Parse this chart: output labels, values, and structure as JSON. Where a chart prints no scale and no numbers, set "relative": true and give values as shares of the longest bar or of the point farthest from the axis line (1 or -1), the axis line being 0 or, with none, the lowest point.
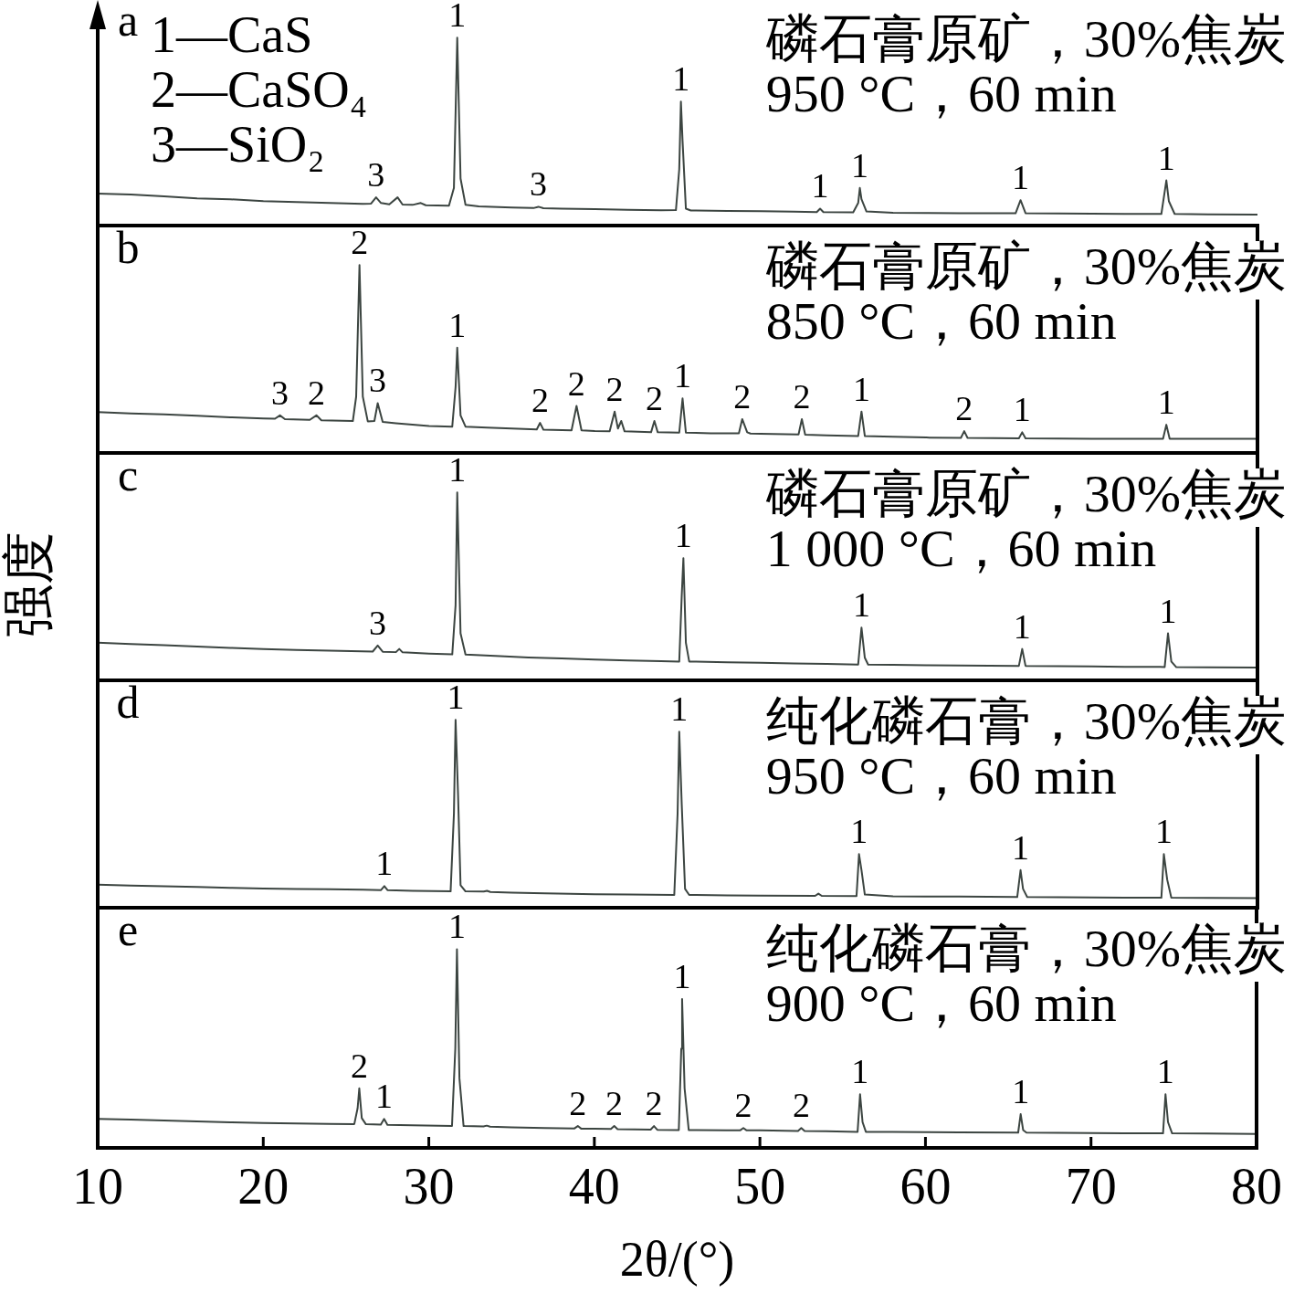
{
  "chart_data": [
    {
      "type": "line",
      "relative": true,
      "xlim": [
        10,
        80
      ],
      "tick_labels": false,
      "color": "#3c4541",
      "title": "磷石膏原矿，30%焦炭",
      "subtitle": "950 °C，60 min",
      "x": [
        10,
        12,
        14,
        16,
        18,
        20,
        22,
        24,
        26,
        26.5,
        26.8,
        27.1,
        27.6,
        28.1,
        28.4,
        29.0,
        29.5,
        29.8,
        31.2,
        31.5,
        31.7,
        31.9,
        32.2,
        33.0,
        35,
        36.3,
        36.6,
        36.9,
        38,
        40,
        42,
        44,
        44.9,
        45.1,
        45.2,
        45.3,
        45.5,
        45.8,
        48,
        50,
        52,
        53.4,
        53.6,
        53.8,
        55.6,
        55.9,
        56.0,
        56.1,
        56.4,
        58,
        60,
        62,
        65.4,
        65.7,
        66.0,
        68,
        70,
        72,
        74.2,
        74.4,
        74.5,
        74.65,
        75.0,
        77,
        80
      ],
      "values": [
        0.17,
        0.165,
        0.155,
        0.145,
        0.14,
        0.13,
        0.125,
        0.12,
        0.115,
        0.117,
        0.15,
        0.12,
        0.113,
        0.15,
        0.112,
        0.11,
        0.12,
        0.108,
        0.106,
        0.2,
        1.0,
        0.25,
        0.11,
        0.102,
        0.096,
        0.093,
        0.1,
        0.092,
        0.09,
        0.087,
        0.084,
        0.081,
        0.082,
        0.3,
        0.66,
        0.45,
        0.09,
        0.08,
        0.078,
        0.077,
        0.074,
        0.072,
        0.09,
        0.072,
        0.07,
        0.12,
        0.2,
        0.14,
        0.075,
        0.068,
        0.067,
        0.066,
        0.065,
        0.135,
        0.066,
        0.064,
        0.063,
        0.062,
        0.062,
        0.18,
        0.24,
        0.13,
        0.062,
        0.06,
        0.058
      ],
      "annotations": [
        "a",
        "1—CaS",
        "2—CaSO₄",
        "3—SiO₂",
        {
          "text": "3",
          "x": 26.8,
          "y": 0.15
        },
        {
          "text": "1",
          "x": 31.7,
          "y": 1.0
        },
        {
          "text": "3",
          "x": 36.6,
          "y": 0.1
        },
        {
          "text": "1",
          "x": 45.2,
          "y": 0.66
        },
        {
          "text": "1",
          "x": 53.6,
          "y": 0.09
        },
        {
          "text": "1",
          "x": 56.0,
          "y": 0.2
        },
        {
          "text": "1",
          "x": 65.7,
          "y": 0.135
        },
        {
          "text": "1",
          "x": 74.5,
          "y": 0.24
        }
      ]
    },
    {
      "type": "line",
      "relative": true,
      "xlim": [
        10,
        80
      ],
      "tick_labels": false,
      "color": "#3c4541",
      "title": "磷石膏原矿，30%焦炭",
      "subtitle": "850 °C，60 min",
      "x": [
        10,
        12,
        14,
        16,
        18,
        20,
        20.7,
        21.0,
        21.3,
        22.8,
        23.2,
        23.5,
        25.4,
        25.6,
        25.8,
        26.0,
        26.3,
        26.7,
        26.9,
        27.2,
        28,
        30,
        31.4,
        31.6,
        31.7,
        31.9,
        32.2,
        33.5,
        35,
        36.5,
        36.7,
        36.9,
        38.6,
        38.9,
        39.2,
        40,
        40.9,
        41.2,
        41.4,
        41.6,
        41.8,
        43.4,
        43.6,
        43.8,
        45.1,
        45.3,
        45.5,
        47,
        48.7,
        48.9,
        49.2,
        49.4,
        50,
        52.3,
        52.5,
        52.7,
        54,
        55.9,
        56.1,
        56.3,
        58,
        60,
        62.1,
        62.3,
        62.5,
        65.6,
        65.8,
        66.0,
        68,
        70,
        72,
        74.3,
        74.5,
        74.7,
        77,
        80
      ],
      "values": [
        0.218,
        0.21,
        0.205,
        0.198,
        0.19,
        0.184,
        0.182,
        0.2,
        0.18,
        0.176,
        0.2,
        0.174,
        0.17,
        0.3,
        1.0,
        0.3,
        0.168,
        0.17,
        0.265,
        0.165,
        0.158,
        0.143,
        0.14,
        0.35,
        0.56,
        0.2,
        0.14,
        0.135,
        0.13,
        0.125,
        0.16,
        0.124,
        0.12,
        0.25,
        0.12,
        0.116,
        0.115,
        0.22,
        0.13,
        0.17,
        0.115,
        0.11,
        0.17,
        0.11,
        0.108,
        0.29,
        0.108,
        0.105,
        0.104,
        0.18,
        0.11,
        0.103,
        0.102,
        0.098,
        0.18,
        0.097,
        0.094,
        0.09,
        0.22,
        0.09,
        0.086,
        0.082,
        0.08,
        0.116,
        0.08,
        0.078,
        0.11,
        0.078,
        0.076,
        0.075,
        0.075,
        0.075,
        0.15,
        0.075,
        0.075,
        0.075
      ],
      "annotations": [
        "b",
        {
          "text": "3",
          "x": 21.0,
          "y": 0.2
        },
        {
          "text": "2",
          "x": 23.2,
          "y": 0.2
        },
        {
          "text": "2",
          "x": 25.8,
          "y": 1.0
        },
        {
          "text": "3",
          "x": 26.9,
          "y": 0.265
        },
        {
          "text": "1",
          "x": 31.7,
          "y": 0.56
        },
        {
          "text": "2",
          "x": 36.7,
          "y": 0.16
        },
        {
          "text": "2",
          "x": 38.9,
          "y": 0.25
        },
        {
          "text": "2",
          "x": 41.2,
          "y": 0.22
        },
        {
          "text": "2",
          "x": 43.6,
          "y": 0.17
        },
        {
          "text": "1",
          "x": 45.3,
          "y": 0.29
        },
        {
          "text": "2",
          "x": 48.9,
          "y": 0.18
        },
        {
          "text": "2",
          "x": 52.5,
          "y": 0.18
        },
        {
          "text": "1",
          "x": 56.1,
          "y": 0.22
        },
        {
          "text": "2",
          "x": 62.3,
          "y": 0.116
        },
        {
          "text": "1",
          "x": 65.8,
          "y": 0.11
        },
        {
          "text": "1",
          "x": 74.5,
          "y": 0.15
        }
      ]
    },
    {
      "type": "line",
      "relative": true,
      "xlim": [
        10,
        80
      ],
      "tick_labels": false,
      "color": "#3c4541",
      "title": "磷石膏原矿，30%焦炭",
      "subtitle": "1 000 °C，60 min",
      "ylabel": "强度",
      "x": [
        10,
        12,
        14,
        16,
        18,
        20,
        22,
        24,
        26.6,
        26.9,
        27.2,
        28.0,
        28.2,
        28.4,
        30,
        31.4,
        31.6,
        31.7,
        31.9,
        32.2,
        34,
        36,
        38,
        40,
        42,
        44,
        45.1,
        45.25,
        45.35,
        45.5,
        45.7,
        48,
        50,
        52,
        54,
        55.9,
        56.1,
        56.3,
        56.5,
        58,
        60,
        62,
        65.6,
        65.8,
        66.0,
        68,
        70,
        72,
        74.4,
        74.6,
        74.8,
        75.1,
        77,
        80
      ],
      "values": [
        0.2,
        0.193,
        0.187,
        0.18,
        0.173,
        0.167,
        0.162,
        0.158,
        0.153,
        0.185,
        0.152,
        0.15,
        0.167,
        0.149,
        0.142,
        0.138,
        0.4,
        1.0,
        0.25,
        0.137,
        0.13,
        0.122,
        0.116,
        0.111,
        0.106,
        0.102,
        0.1,
        0.45,
        0.65,
        0.2,
        0.1,
        0.096,
        0.093,
        0.09,
        0.087,
        0.084,
        0.28,
        0.12,
        0.084,
        0.082,
        0.08,
        0.079,
        0.077,
        0.167,
        0.077,
        0.075,
        0.074,
        0.072,
        0.071,
        0.25,
        0.1,
        0.07,
        0.069,
        0.068
      ],
      "annotations": [
        "c",
        {
          "text": "3",
          "x": 26.9,
          "y": 0.185
        },
        {
          "text": "1",
          "x": 31.7,
          "y": 1.0
        },
        {
          "text": "1",
          "x": 45.35,
          "y": 0.65
        },
        {
          "text": "1",
          "x": 56.1,
          "y": 0.28
        },
        {
          "text": "1",
          "x": 65.8,
          "y": 0.167
        },
        {
          "text": "1",
          "x": 74.6,
          "y": 0.25
        }
      ]
    },
    {
      "type": "line",
      "relative": true,
      "xlim": [
        10,
        80
      ],
      "tick_labels": false,
      "color": "#3c4541",
      "title": "纯化磷石膏，30%焦炭",
      "subtitle": "950 °C，60 min",
      "x": [
        10,
        12,
        14,
        16,
        18,
        20,
        22,
        24,
        26,
        27.1,
        27.3,
        27.5,
        29,
        31.3,
        31.5,
        31.6,
        31.75,
        31.9,
        32.2,
        33.3,
        33.5,
        33.7,
        35,
        37,
        40,
        42,
        44.8,
        45.0,
        45.1,
        45.25,
        45.45,
        45.7,
        48,
        50,
        53.3,
        53.5,
        53.7,
        55.8,
        55.95,
        56.1,
        56.3,
        58,
        60,
        62,
        65.5,
        65.7,
        65.85,
        66.1,
        68,
        70,
        72,
        74.2,
        74.35,
        74.55,
        74.8,
        77,
        80
      ],
      "values": [
        0.123,
        0.118,
        0.114,
        0.11,
        0.106,
        0.102,
        0.1,
        0.098,
        0.096,
        0.094,
        0.115,
        0.093,
        0.09,
        0.087,
        0.5,
        1.0,
        0.6,
        0.12,
        0.087,
        0.086,
        0.09,
        0.084,
        0.08,
        0.077,
        0.072,
        0.07,
        0.068,
        0.5,
        0.936,
        0.55,
        0.1,
        0.068,
        0.066,
        0.064,
        0.063,
        0.075,
        0.063,
        0.062,
        0.285,
        0.2,
        0.07,
        0.061,
        0.06,
        0.059,
        0.057,
        0.2,
        0.1,
        0.057,
        0.056,
        0.055,
        0.054,
        0.053,
        0.285,
        0.15,
        0.053,
        0.052,
        0.051
      ],
      "annotations": [
        "d",
        {
          "text": "1",
          "x": 27.3,
          "y": 0.115
        },
        {
          "text": "1",
          "x": 31.6,
          "y": 1.0
        },
        {
          "text": "1",
          "x": 45.1,
          "y": 0.936
        },
        {
          "text": "1",
          "x": 55.95,
          "y": 0.285
        },
        {
          "text": "1",
          "x": 65.7,
          "y": 0.2
        },
        {
          "text": "1",
          "x": 74.35,
          "y": 0.285
        }
      ]
    },
    {
      "type": "line",
      "relative": true,
      "xlim": [
        10,
        80
      ],
      "xticks": [
        10,
        20,
        30,
        40,
        50,
        60,
        70,
        80
      ],
      "color": "#3c4541",
      "title": "纯化磷石膏，30%焦炭",
      "subtitle": "900 °C，60 min",
      "xlabel": "2θ/(°)",
      "x": [
        10,
        12,
        14,
        16,
        18,
        20,
        22,
        24,
        25.5,
        25.7,
        25.8,
        25.95,
        26.2,
        27.1,
        27.3,
        27.5,
        29,
        31.4,
        31.6,
        31.7,
        31.85,
        32.1,
        33.3,
        33.5,
        33.7,
        35,
        37,
        38.8,
        39.0,
        39.2,
        40,
        41.0,
        41.2,
        41.4,
        43.4,
        43.6,
        43.8,
        45.1,
        45.25,
        45.3,
        45.45,
        45.7,
        48,
        48.8,
        49.0,
        49.2,
        50,
        52.3,
        52.5,
        52.7,
        54,
        55.9,
        56.05,
        56.2,
        56.4,
        58,
        60,
        62,
        65.6,
        65.75,
        65.9,
        66.1,
        68,
        70,
        72,
        74.35,
        74.5,
        74.65,
        74.9,
        77,
        80
      ],
      "values": [
        0.146,
        0.142,
        0.138,
        0.133,
        0.129,
        0.125,
        0.123,
        0.121,
        0.12,
        0.2,
        0.3,
        0.15,
        0.119,
        0.117,
        0.146,
        0.116,
        0.114,
        0.11,
        0.5,
        1.0,
        0.35,
        0.11,
        0.108,
        0.112,
        0.107,
        0.104,
        0.1,
        0.098,
        0.11,
        0.097,
        0.096,
        0.095,
        0.11,
        0.094,
        0.092,
        0.11,
        0.091,
        0.09,
        0.5,
        0.75,
        0.3,
        0.09,
        0.089,
        0.088,
        0.1,
        0.088,
        0.088,
        0.085,
        0.1,
        0.085,
        0.084,
        0.081,
        0.27,
        0.13,
        0.081,
        0.08,
        0.079,
        0.078,
        0.077,
        0.17,
        0.09,
        0.077,
        0.076,
        0.075,
        0.074,
        0.073,
        0.27,
        0.13,
        0.073,
        0.072,
        0.07
      ],
      "annotations": [
        "e",
        {
          "text": "2",
          "x": 25.8,
          "y": 0.3
        },
        {
          "text": "1",
          "x": 27.3,
          "y": 0.146
        },
        {
          "text": "1",
          "x": 31.7,
          "y": 1.0
        },
        {
          "text": "2",
          "x": 39.0,
          "y": 0.11
        },
        {
          "text": "2",
          "x": 41.2,
          "y": 0.11
        },
        {
          "text": "2",
          "x": 43.6,
          "y": 0.11
        },
        {
          "text": "1",
          "x": 45.3,
          "y": 0.75
        },
        {
          "text": "2",
          "x": 49.0,
          "y": 0.1
        },
        {
          "text": "2",
          "x": 52.5,
          "y": 0.1
        },
        {
          "text": "1",
          "x": 56.05,
          "y": 0.27
        },
        {
          "text": "1",
          "x": 65.75,
          "y": 0.17
        },
        {
          "text": "1",
          "x": 74.5,
          "y": 0.27
        }
      ]
    }
  ]
}
